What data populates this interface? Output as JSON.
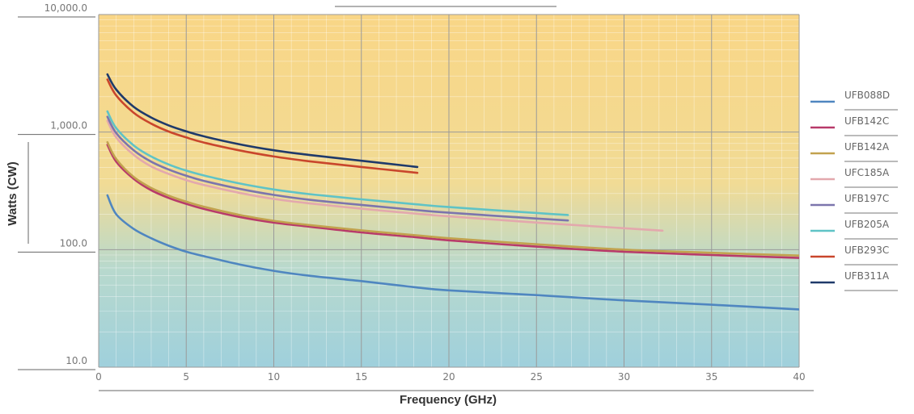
{
  "chart_data": {
    "type": "line",
    "title": "",
    "xlabel": "Frequency (GHz)",
    "ylabel": "Watts (CW)",
    "xlim": [
      0,
      40
    ],
    "ylim": [
      10,
      10000
    ],
    "y_scale": "log",
    "grid": true,
    "legend_position": "right",
    "background_gradient": [
      "#f9d686",
      "#9fd0dc"
    ],
    "x_ticks": [
      0,
      5,
      10,
      15,
      20,
      25,
      30,
      35,
      40
    ],
    "x_tick_labels": [
      "0",
      "5",
      "10",
      "15",
      "20",
      "25",
      "30",
      "35",
      "40"
    ],
    "y_ticks": [
      10,
      100,
      1000,
      10000
    ],
    "y_tick_labels": [
      "10.0",
      "100.0",
      "1,000.0",
      "10,000.0"
    ],
    "series": [
      {
        "name": "UFB088D",
        "color": "#4f86c0",
        "x": [
          0.5,
          1,
          2,
          3,
          4,
          5,
          6,
          8,
          10,
          12,
          15,
          18,
          20,
          25,
          30,
          35,
          40
        ],
        "y": [
          290,
          200,
          150,
          125,
          108,
          96,
          88,
          75,
          66,
          60,
          54,
          48,
          45,
          41,
          37,
          34,
          31
        ]
      },
      {
        "name": "UFB142C",
        "color": "#b83a6a",
        "x": [
          0.5,
          1,
          2,
          3,
          4,
          5,
          6,
          8,
          10,
          12,
          15,
          18,
          20,
          25,
          30,
          35,
          40
        ],
        "y": [
          780,
          560,
          400,
          320,
          275,
          245,
          222,
          190,
          170,
          157,
          140,
          128,
          120,
          106,
          96,
          90,
          85
        ]
      },
      {
        "name": "UFB142A",
        "color": "#c2a24e",
        "x": [
          0.5,
          1,
          2,
          3,
          4,
          5,
          6,
          8,
          10,
          12,
          15,
          18,
          20,
          25,
          30,
          35,
          40
        ],
        "y": [
          820,
          590,
          415,
          335,
          288,
          256,
          232,
          198,
          176,
          162,
          146,
          133,
          125,
          111,
          100,
          94,
          89
        ]
      },
      {
        "name": "UFC185A",
        "color": "#e3a8ad",
        "x": [
          0.5,
          1,
          2,
          3,
          4,
          5,
          6,
          8,
          10,
          12,
          15,
          18,
          20,
          25,
          30,
          32.2
        ],
        "y": [
          1250,
          900,
          640,
          510,
          440,
          390,
          355,
          305,
          270,
          248,
          223,
          203,
          192,
          170,
          152,
          145
        ]
      },
      {
        "name": "UFB197C",
        "color": "#7c75ad",
        "x": [
          0.5,
          1,
          2,
          3,
          4,
          5,
          6,
          8,
          10,
          12,
          15,
          18,
          20,
          25,
          26.8
        ],
        "y": [
          1350,
          980,
          700,
          560,
          480,
          425,
          385,
          330,
          292,
          266,
          240,
          218,
          206,
          184,
          177
        ]
      },
      {
        "name": "UFB205A",
        "color": "#5fc3c6",
        "x": [
          0.5,
          1,
          2,
          3,
          4,
          5,
          6,
          8,
          10,
          12,
          15,
          18,
          20,
          25,
          26.8
        ],
        "y": [
          1500,
          1080,
          770,
          620,
          530,
          470,
          428,
          367,
          325,
          297,
          268,
          244,
          230,
          205,
          197
        ]
      },
      {
        "name": "UFB293C",
        "color": "#c9462c",
        "x": [
          0.5,
          1,
          2,
          3,
          4,
          5,
          6,
          8,
          10,
          12,
          15,
          18.2
        ],
        "y": [
          2800,
          2050,
          1460,
          1180,
          1010,
          900,
          815,
          700,
          620,
          565,
          505,
          450
        ]
      },
      {
        "name": "UFB311A",
        "color": "#1f3a6a",
        "x": [
          0.5,
          1,
          2,
          3,
          4,
          5,
          6,
          8,
          10,
          12,
          15,
          18.2
        ],
        "y": [
          3100,
          2300,
          1640,
          1330,
          1140,
          1015,
          920,
          790,
          700,
          640,
          570,
          505
        ]
      }
    ]
  }
}
